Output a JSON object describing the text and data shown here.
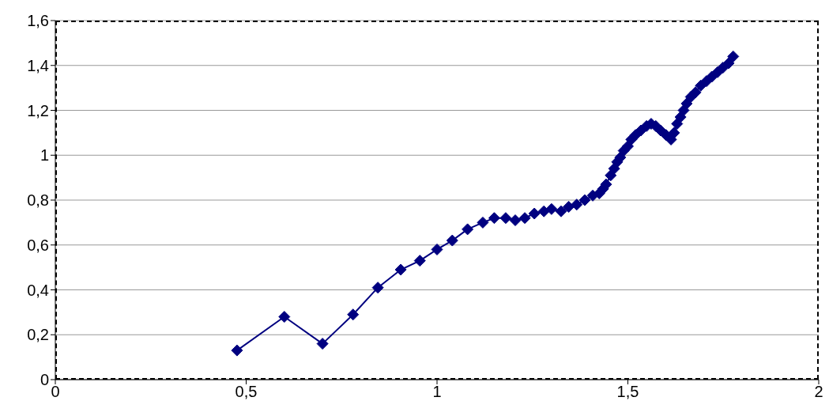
{
  "chart_data": {
    "type": "line",
    "marker": "diamond",
    "line_style": "solid",
    "grid": "y",
    "legend": false,
    "xlim": [
      0,
      2
    ],
    "xticks": [
      0,
      {
        "value": 0.5,
        "label": "0,5"
      },
      1,
      {
        "value": 1.5,
        "label": "1,5"
      },
      2
    ],
    "ylim": [
      0,
      1.6
    ],
    "yticks": [
      0,
      {
        "value": 0.2,
        "label": "0,2"
      },
      {
        "value": 0.4,
        "label": "0,4"
      },
      {
        "value": 0.6,
        "label": "0,6"
      },
      {
        "value": 0.8,
        "label": "0,8"
      },
      1,
      {
        "value": 1.2,
        "label": "1,2"
      },
      {
        "value": 1.4,
        "label": "1,4"
      },
      {
        "value": 1.6,
        "label": "1,6"
      }
    ],
    "x": [
      0.476,
      0.6,
      0.7,
      0.78,
      0.845,
      0.905,
      0.955,
      1.0,
      1.04,
      1.08,
      1.12,
      1.15,
      1.18,
      1.205,
      1.23,
      1.255,
      1.28,
      1.3,
      1.325,
      1.345,
      1.366,
      1.387,
      1.408,
      1.425,
      1.435,
      1.443,
      1.455,
      1.464,
      1.472,
      1.48,
      1.489,
      1.5,
      1.509,
      1.52,
      1.534,
      1.549,
      1.561,
      1.573,
      1.586,
      1.6,
      1.613,
      1.621,
      1.629,
      1.638,
      1.646,
      1.654,
      1.665,
      1.677,
      1.691,
      1.706,
      1.72,
      1.735,
      1.749,
      1.764,
      1.776
    ],
    "series": [
      {
        "color": "#000080",
        "values": [
          0.13,
          0.28,
          0.16,
          0.29,
          0.41,
          0.49,
          0.53,
          0.58,
          0.62,
          0.67,
          0.7,
          0.72,
          0.72,
          0.71,
          0.72,
          0.74,
          0.75,
          0.76,
          0.75,
          0.77,
          0.78,
          0.8,
          0.82,
          0.83,
          0.85,
          0.87,
          0.91,
          0.94,
          0.97,
          0.99,
          1.02,
          1.04,
          1.07,
          1.09,
          1.11,
          1.13,
          1.14,
          1.13,
          1.11,
          1.09,
          1.07,
          1.1,
          1.14,
          1.17,
          1.2,
          1.23,
          1.26,
          1.28,
          1.31,
          1.33,
          1.35,
          1.37,
          1.39,
          1.41,
          1.44
        ]
      }
    ]
  }
}
